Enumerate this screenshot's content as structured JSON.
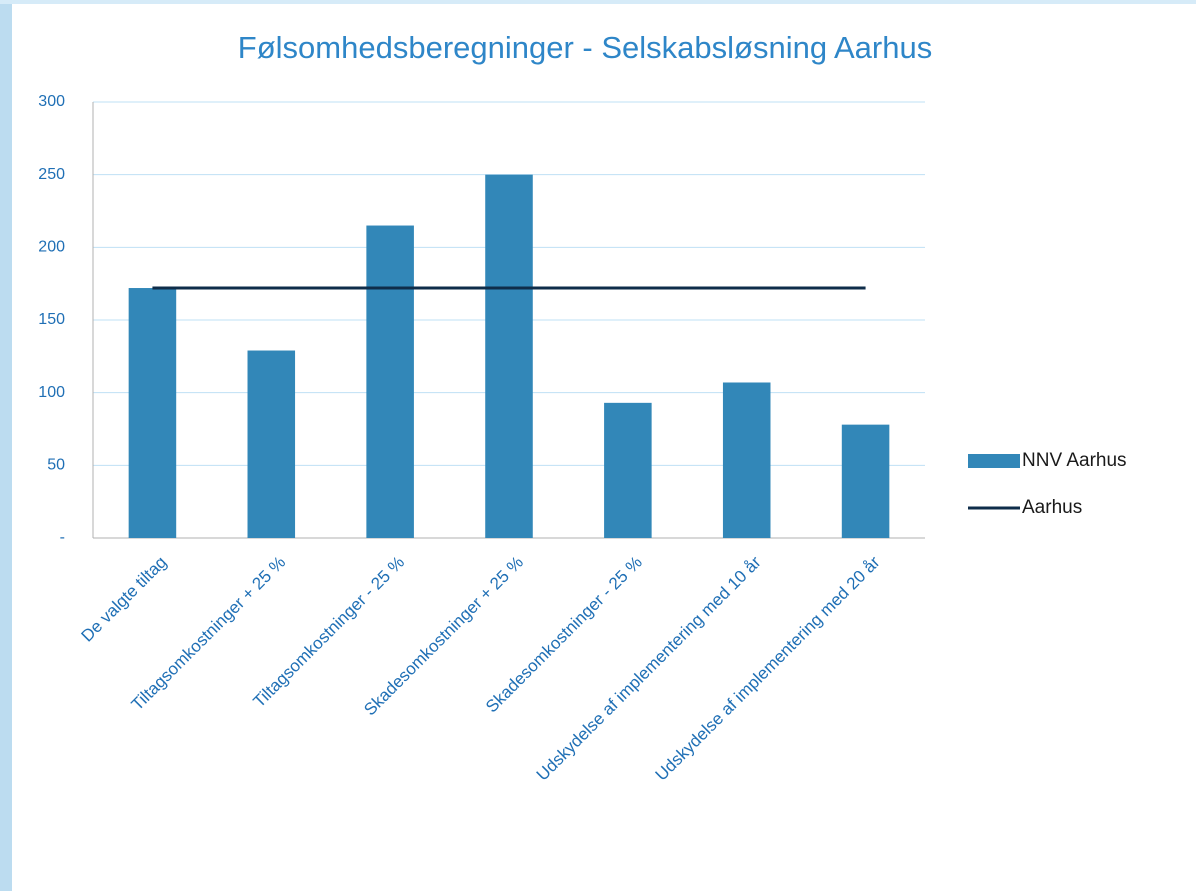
{
  "chart_data": {
    "type": "bar",
    "title": "Følsomhedsberegninger - Selskabsløsning Aarhus",
    "categories": [
      "De valgte tiltag",
      "Tiltagsomkostninger + 25 %",
      "Tiltagsomkostninger - 25 %",
      "Skadesomkostninger + 25 %",
      "Skadesomkostninger - 25 %",
      "Udskydelse af implementering med 10 år",
      "Udskydelse af implementering med 20 år"
    ],
    "series": [
      {
        "name": "NNV Aarhus",
        "type": "bar",
        "color": "#3287b8",
        "values": [
          172,
          129,
          215,
          250,
          93,
          107,
          78
        ]
      },
      {
        "name": "Aarhus",
        "type": "line",
        "color": "#0f2d4a",
        "values": [
          172,
          172,
          172,
          172,
          172,
          172,
          172
        ]
      }
    ],
    "ylim": [
      0,
      300
    ],
    "yticks": [
      {
        "value": 0,
        "label": "-"
      },
      50,
      100,
      150,
      200,
      250,
      300
    ],
    "grid": true,
    "legend": "right"
  }
}
